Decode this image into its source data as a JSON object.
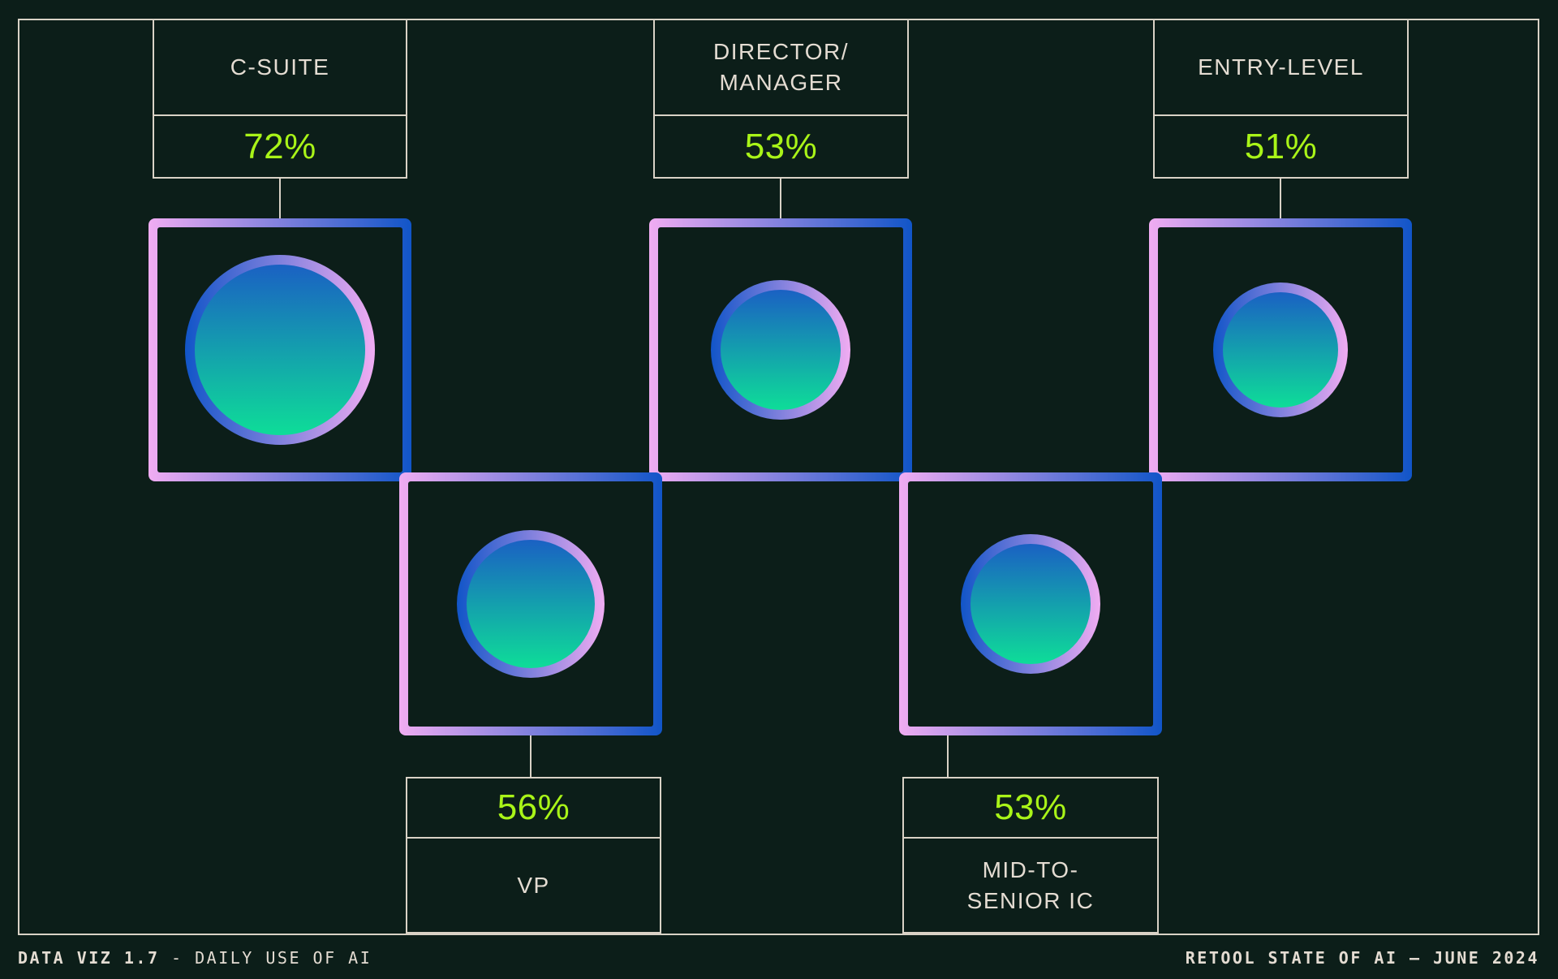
{
  "colors": {
    "bg": "#0c1e19",
    "line": "#d9d2c6",
    "text": "#e4dcd2",
    "green": "#a9f418",
    "pink": "#f0acf2",
    "blue": "#1155c8",
    "circle-top": "#1a61c3",
    "circle-bottom": "#0edd98"
  },
  "nodes": [
    {
      "label": "C-SUITE",
      "value_label": "72%",
      "value": 72
    },
    {
      "label": "DIRECTOR/\nMANAGER",
      "value_label": "53%",
      "value": 53
    },
    {
      "label": "ENTRY-LEVEL",
      "value_label": "51%",
      "value": 51
    },
    {
      "label": "VP",
      "value_label": "56%",
      "value": 56
    },
    {
      "label": "MID-TO-\nSENIOR IC",
      "value_label": "53%",
      "value": 53
    }
  ],
  "footer": {
    "left_title": "DATA VIZ 1.7",
    "left_subtitle": " - DAILY USE OF AI",
    "right_source": "RETOOL STATE OF AI — JUNE 2024"
  },
  "chart_data": {
    "type": "bubble",
    "title": "DAILY USE OF AI",
    "categories": [
      "C-SUITE",
      "DIRECTOR/MANAGER",
      "ENTRY-LEVEL",
      "VP",
      "MID-TO-SENIOR IC"
    ],
    "values": [
      72,
      53,
      51,
      56,
      53
    ],
    "unit": "%",
    "layout_hint": "five squares in zig-zag rows; circle diameter proportional to value; labels in bordered boxes at top (row 1) and bottom (row 2)",
    "source": "RETOOL STATE OF AI — JUNE 2024"
  }
}
